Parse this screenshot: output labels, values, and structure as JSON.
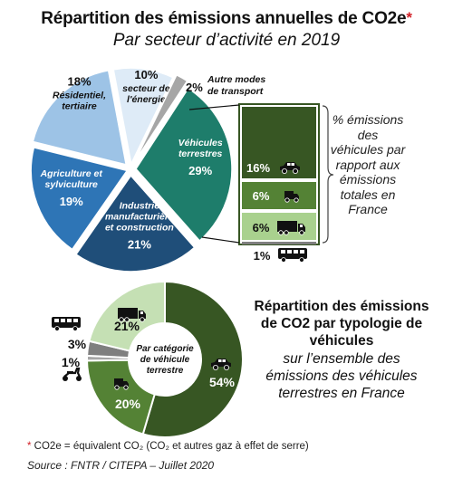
{
  "header": {
    "title": "Répartition des émissions annuelles de CO2e",
    "title_mark": "*",
    "subtitle": "Par secteur d’activité en 2019"
  },
  "chart_data": [
    {
      "type": "pie",
      "title": "Répartition des émissions annuelles de CO2e",
      "subtitle": "Par secteur d’activité en 2019",
      "slices": [
        {
          "label": "Véhicules terrestres",
          "value": 29,
          "value_label": "29%",
          "color": "#1e7d6b"
        },
        {
          "label": "Industrie manufacturière et construction",
          "value": 21,
          "value_label": "21%",
          "color": "#1f4e79"
        },
        {
          "label": "Agriculture et sylviculture",
          "value": 19,
          "value_label": "19%",
          "color": "#2e75b6"
        },
        {
          "label": "Résidentiel, tertiaire",
          "value": 18,
          "value_label": "18%",
          "color": "#9dc3e6"
        },
        {
          "label": "secteur de l'énergie",
          "value": 10,
          "value_label": "10%",
          "color": "#deebf7"
        },
        {
          "label": "Autre modes de transport",
          "value": 2,
          "value_label": "2%",
          "color": "#a6a6a6"
        }
      ]
    },
    {
      "type": "bar",
      "stacked": true,
      "description_label": "% émissions des véhicules par rapport aux émissions totales en France",
      "segments": [
        {
          "category": "voitures",
          "icon": "car-icon",
          "value": 16,
          "value_label": "16%",
          "color": "#375623"
        },
        {
          "category": "véhicules utilitaires",
          "icon": "van-icon",
          "value": 6,
          "value_label": "6%",
          "color": "#548235"
        },
        {
          "category": "poids lourds",
          "icon": "truck-icon",
          "value": 6,
          "value_label": "6%",
          "color": "#a9d18e"
        },
        {
          "category": "bus et cars",
          "icon": "bus-icon",
          "value": 1,
          "value_label": "1%",
          "color": "#7f7f7f"
        }
      ]
    },
    {
      "type": "pie",
      "donut": true,
      "title": "Répartition des émissions de CO2 par typologie de véhicules",
      "subtitle": "sur l’ensemble des émissions des véhicules terrestres en France",
      "center_label": "Par catégorie de véhicule terrestre",
      "slices": [
        {
          "category": "voitures",
          "icon": "car-icon",
          "value": 54,
          "value_label": "54%",
          "color": "#375623"
        },
        {
          "category": "véhicules utilitaires",
          "icon": "van-icon",
          "value": 20,
          "value_label": "20%",
          "color": "#548235"
        },
        {
          "category": "deux-roues",
          "icon": "scooter-icon",
          "value": 1,
          "value_label": "1%",
          "color": "#a6a6a6"
        },
        {
          "category": "bus et cars",
          "icon": "bus-icon",
          "value": 3,
          "value_label": "3%",
          "color": "#7f7f7f"
        },
        {
          "category": "poids lourds",
          "icon": "truck-icon",
          "value": 21,
          "value_label": "21%",
          "color": "#c5e0b4"
        }
      ]
    }
  ],
  "second_chart": {
    "title": "Répartition des émissions de CO2 par typologie de véhicules",
    "subtitle": "sur l’ensemble des émissions des véhicules terrestres en France"
  },
  "footnote": {
    "mark": "*",
    "text": " CO2e = équivalent CO₂ (CO₂ et autres gaz à effet de serre)"
  },
  "source": "Source : FNTR / CITEPA – Juillet 2020"
}
